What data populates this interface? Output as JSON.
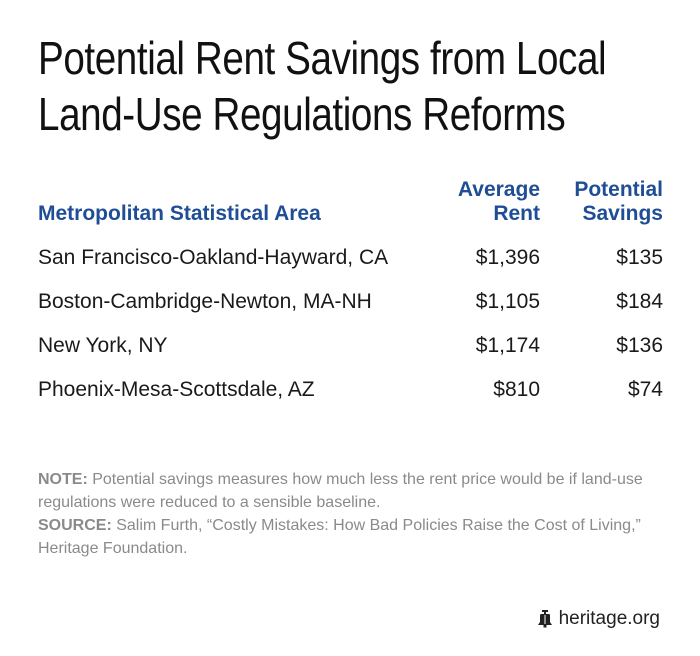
{
  "chart_data": {
    "type": "table",
    "title_lines": [
      "Potential Rent Savings from Local",
      "Land-Use Regulations Reforms"
    ],
    "columns": {
      "area": "Metropolitan Statistical Area",
      "rent_line1": "Average",
      "rent_line2": "Rent",
      "savings_line1": "Potential",
      "savings_line2": "Savings"
    },
    "rows": [
      {
        "area": "San Francisco-Oakland-Hayward, CA",
        "rent": "$1,396",
        "savings": "$135"
      },
      {
        "area": "Boston-Cambridge-Newton, MA-NH",
        "rent": "$1,105",
        "savings": "$184"
      },
      {
        "area": "New York, NY",
        "rent": "$1,174",
        "savings": "$136"
      },
      {
        "area": "Phoenix-Mesa-Scottsdale, AZ",
        "rent": "$810",
        "savings": "$74"
      }
    ]
  },
  "notes": {
    "note_label": "NOTE:",
    "note_text": " Potential savings measures how much less the rent price would be if land-use regulations were reduced to a sensible baseline.",
    "source_label": "SOURCE:",
    "source_text": " Salim Furth, “Costly Mistakes: How Bad Policies Raise the Cost of Living,” Heritage Foundation."
  },
  "footer": {
    "site": "heritage.org",
    "icon": "liberty-bell-icon"
  },
  "colors": {
    "header": "#1f4e96",
    "notes": "#8a8a8a"
  }
}
